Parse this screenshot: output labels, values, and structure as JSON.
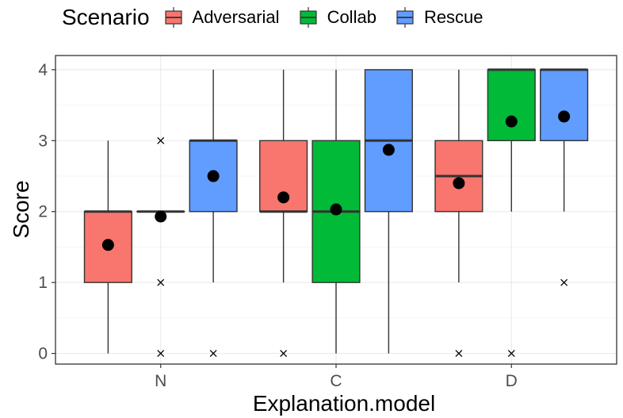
{
  "chart_data": {
    "type": "boxplot",
    "title": "",
    "xlabel": "Explanation.model",
    "ylabel": "Score",
    "ylim": [
      -0.15,
      4.2
    ],
    "yticks": [
      0,
      1,
      2,
      3,
      4
    ],
    "categories": [
      "N",
      "C",
      "D"
    ],
    "legend": {
      "title": "Scenario",
      "position": "top",
      "entries": [
        "Adversarial",
        "Collab",
        "Rescue"
      ]
    },
    "grid": true,
    "series": [
      {
        "name": "Adversarial",
        "color": "#F8766D",
        "boxes": [
          {
            "category": "N",
            "min": 0,
            "q1": 1,
            "median": 2,
            "q3": 2,
            "max": 3,
            "mean": 1.53,
            "outliers": []
          },
          {
            "category": "C",
            "min": 1,
            "q1": 2,
            "median": 2,
            "q3": 3,
            "max": 4,
            "mean": 2.2,
            "outliers": [
              0
            ]
          },
          {
            "category": "D",
            "min": 1,
            "q1": 2,
            "median": 2.5,
            "q3": 3,
            "max": 4,
            "mean": 2.4,
            "outliers": [
              0
            ]
          }
        ]
      },
      {
        "name": "Collab",
        "color": "#00BA38",
        "boxes": [
          {
            "category": "N",
            "min": 2,
            "q1": 2,
            "median": 2,
            "q3": 2,
            "max": 2,
            "mean": 1.93,
            "outliers": [
              0,
              1,
              3
            ]
          },
          {
            "category": "C",
            "min": 0,
            "q1": 1,
            "median": 2,
            "q3": 3,
            "max": 4,
            "mean": 2.03,
            "outliers": []
          },
          {
            "category": "D",
            "min": 2,
            "q1": 3,
            "median": 4,
            "q3": 4,
            "max": 4,
            "mean": 3.27,
            "outliers": [
              0
            ]
          }
        ]
      },
      {
        "name": "Rescue",
        "color": "#619CFF",
        "boxes": [
          {
            "category": "N",
            "min": 1,
            "q1": 2,
            "median": 3,
            "q3": 3,
            "max": 4,
            "mean": 2.5,
            "outliers": [
              0
            ]
          },
          {
            "category": "C",
            "min": 0,
            "q1": 2,
            "median": 3,
            "q3": 4,
            "max": 4,
            "mean": 2.87,
            "outliers": []
          },
          {
            "category": "D",
            "min": 2,
            "q1": 3,
            "median": 4,
            "q3": 4,
            "max": 4,
            "mean": 3.34,
            "outliers": [
              1
            ]
          }
        ]
      }
    ]
  }
}
